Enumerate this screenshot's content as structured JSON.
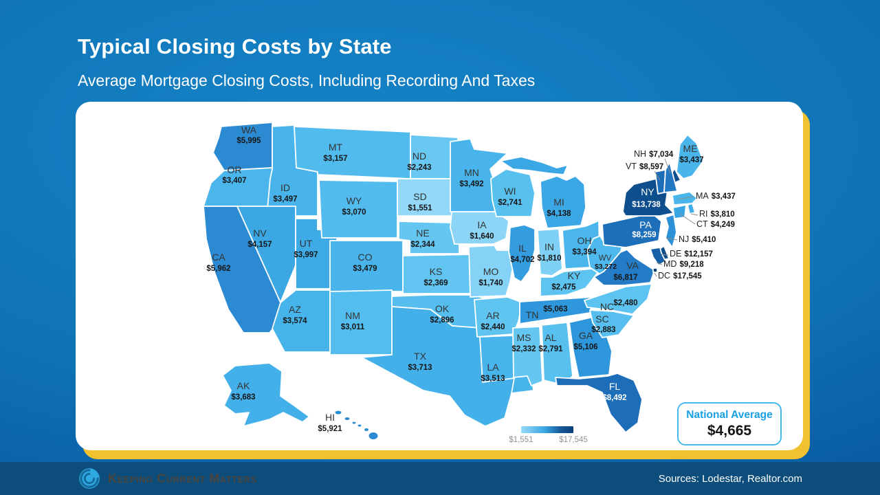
{
  "slide": {
    "title": "Typical Closing Costs by State",
    "subtitle": "Average Mortgage Closing Costs, Including Recording And Taxes",
    "footer": {
      "brand": "Keeping Current Matters",
      "sources": "Sources: Lodestar, Realtor.com"
    }
  },
  "legend": {
    "min_label": "$1,551",
    "max_label": "$17,545"
  },
  "national_average": {
    "label": "National Average",
    "value": "$4,665"
  },
  "colors": {
    "background": "#0f74b6",
    "accent_yellow": "#f1c12f",
    "footer_bg": "#0d4d7c",
    "brand_blue": "#2fa9e2",
    "natavg_border": "#45b8ec",
    "natavg_label_blue": "#18a0e4",
    "legend_text": "#8d9298",
    "map_min_color": "#93d8f8",
    "map_max_color": "#0b3f74"
  },
  "chart_data": {
    "type": "heatmap",
    "subtype": "us-state-choropleth",
    "title": "Typical Closing Costs by State",
    "subtitle": "Average Mortgage Closing Costs, Including Recording And Taxes",
    "unit": "USD",
    "value_range": [
      1551,
      17545
    ],
    "legend": {
      "min": "$1,551",
      "max": "$17,545",
      "position": "bottom-center"
    },
    "national_average": 4665,
    "sources": "Lodestar, Realtor.com",
    "states": [
      {
        "abbr": "WA",
        "value": 5995,
        "label": "$5,995"
      },
      {
        "abbr": "OR",
        "value": 3407,
        "label": "$3,407"
      },
      {
        "abbr": "CA",
        "value": 5962,
        "label": "$5,962"
      },
      {
        "abbr": "ID",
        "value": 3497,
        "label": "$3,497"
      },
      {
        "abbr": "NV",
        "value": 4157,
        "label": "$4,157"
      },
      {
        "abbr": "UT",
        "value": 3997,
        "label": "$3,997"
      },
      {
        "abbr": "AZ",
        "value": 3574,
        "label": "$3,574"
      },
      {
        "abbr": "MT",
        "value": 3157,
        "label": "$3,157"
      },
      {
        "abbr": "WY",
        "value": 3070,
        "label": "$3,070"
      },
      {
        "abbr": "CO",
        "value": 3479,
        "label": "$3,479"
      },
      {
        "abbr": "NM",
        "value": 3011,
        "label": "$3,011"
      },
      {
        "abbr": "ND",
        "value": 2243,
        "label": "$2,243"
      },
      {
        "abbr": "SD",
        "value": 1551,
        "label": "$1,551"
      },
      {
        "abbr": "NE",
        "value": 2344,
        "label": "$2,344"
      },
      {
        "abbr": "KS",
        "value": 2369,
        "label": "$2,369"
      },
      {
        "abbr": "OK",
        "value": 2896,
        "label": "$2,896"
      },
      {
        "abbr": "TX",
        "value": 3713,
        "label": "$3,713"
      },
      {
        "abbr": "MN",
        "value": 3492,
        "label": "$3,492"
      },
      {
        "abbr": "IA",
        "value": 1640,
        "label": "$1,640"
      },
      {
        "abbr": "MO",
        "value": 1740,
        "label": "$1,740"
      },
      {
        "abbr": "AR",
        "value": 2440,
        "label": "$2,440"
      },
      {
        "abbr": "LA",
        "value": 3513,
        "label": "$3,513"
      },
      {
        "abbr": "WI",
        "value": 2741,
        "label": "$2,741"
      },
      {
        "abbr": "IL",
        "value": 4702,
        "label": "$4,702"
      },
      {
        "abbr": "IN",
        "value": 1810,
        "label": "$1,810"
      },
      {
        "abbr": "MI",
        "value": 4138,
        "label": "$4,138"
      },
      {
        "abbr": "OH",
        "value": 3394,
        "label": "$3,394"
      },
      {
        "abbr": "KY",
        "value": 2475,
        "label": "$2,475"
      },
      {
        "abbr": "TN",
        "value": 5063,
        "label": "$5,063"
      },
      {
        "abbr": "MS",
        "value": 2332,
        "label": "$2,332"
      },
      {
        "abbr": "AL",
        "value": 2791,
        "label": "$2,791"
      },
      {
        "abbr": "GA",
        "value": 5106,
        "label": "$5,106"
      },
      {
        "abbr": "FL",
        "value": 8492,
        "label": "$8,492"
      },
      {
        "abbr": "SC",
        "value": 2883,
        "label": "$2,883"
      },
      {
        "abbr": "NC",
        "value": 2480,
        "label": "$2,480"
      },
      {
        "abbr": "WV",
        "value": 3272,
        "label": "$3,272"
      },
      {
        "abbr": "VA",
        "value": 6817,
        "label": "$6,817"
      },
      {
        "abbr": "PA",
        "value": 8259,
        "label": "$8,259"
      },
      {
        "abbr": "NY",
        "value": 13738,
        "label": "$13,738"
      },
      {
        "abbr": "VT",
        "value": 8597,
        "label": "$8,597"
      },
      {
        "abbr": "NH",
        "value": 7034,
        "label": "$7,034"
      },
      {
        "abbr": "ME",
        "value": 3437,
        "label": "$3,437"
      },
      {
        "abbr": "MA",
        "value": 3437,
        "label": "$3,437"
      },
      {
        "abbr": "RI",
        "value": 3810,
        "label": "$3,810"
      },
      {
        "abbr": "CT",
        "value": 4249,
        "label": "$4,249"
      },
      {
        "abbr": "NJ",
        "value": 5410,
        "label": "$5,410"
      },
      {
        "abbr": "DE",
        "value": 12157,
        "label": "$12,157"
      },
      {
        "abbr": "MD",
        "value": 9218,
        "label": "$9,218"
      },
      {
        "abbr": "DC",
        "value": 17545,
        "label": "$17,545"
      },
      {
        "abbr": "AK",
        "value": 3683,
        "label": "$3,683"
      },
      {
        "abbr": "HI",
        "value": 5921,
        "label": "$5,921"
      }
    ]
  }
}
